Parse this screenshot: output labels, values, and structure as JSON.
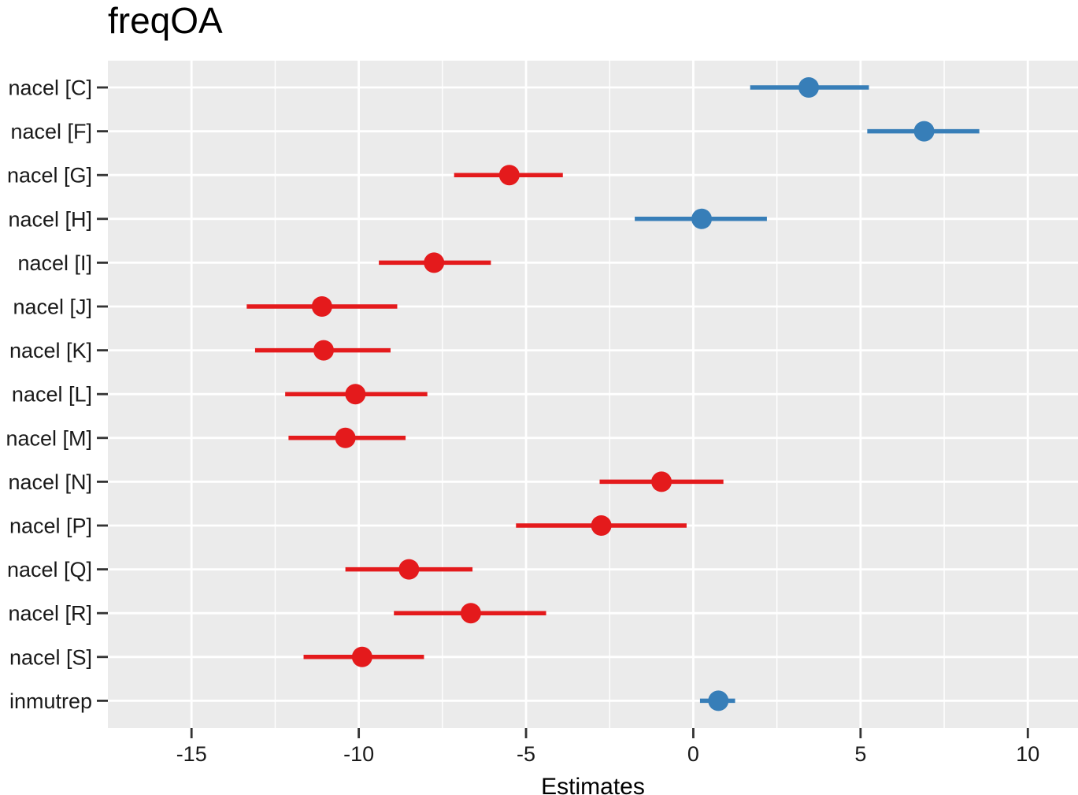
{
  "chart_data": {
    "type": "scatter",
    "title": "freqOA",
    "xlabel": "Estimates",
    "ylabel": "",
    "xlim": [
      -17.5,
      11.5
    ],
    "xticks": [
      -15,
      -10,
      -5,
      0,
      5,
      10
    ],
    "xtick_labels": [
      "-15",
      "-10",
      "-5",
      "0",
      "5",
      "10"
    ],
    "grid": true,
    "legend": "none",
    "colors": {
      "positive": "#377eb8",
      "negative": "#e41a1c",
      "panel": "#ebebeb",
      "grid": "#ffffff"
    },
    "terms": [
      {
        "label": "nacel [C]",
        "estimate": 3.45,
        "low": 1.7,
        "high": 5.25
      },
      {
        "label": "nacel [F]",
        "estimate": 6.9,
        "low": 5.2,
        "high": 8.55
      },
      {
        "label": "nacel [G]",
        "estimate": -5.5,
        "low": -7.15,
        "high": -3.9
      },
      {
        "label": "nacel [H]",
        "estimate": 0.25,
        "low": -1.75,
        "high": 2.2
      },
      {
        "label": "nacel [I]",
        "estimate": -7.75,
        "low": -9.4,
        "high": -6.05
      },
      {
        "label": "nacel [J]",
        "estimate": -11.1,
        "low": -13.35,
        "high": -8.85
      },
      {
        "label": "nacel [K]",
        "estimate": -11.05,
        "low": -13.1,
        "high": -9.05
      },
      {
        "label": "nacel [L]",
        "estimate": -10.1,
        "low": -12.2,
        "high": -7.95
      },
      {
        "label": "nacel [M]",
        "estimate": -10.4,
        "low": -12.1,
        "high": -8.6
      },
      {
        "label": "nacel [N]",
        "estimate": -0.95,
        "low": -2.8,
        "high": 0.9
      },
      {
        "label": "nacel [P]",
        "estimate": -2.75,
        "low": -5.3,
        "high": -0.2
      },
      {
        "label": "nacel [Q]",
        "estimate": -8.5,
        "low": -10.4,
        "high": -6.6
      },
      {
        "label": "nacel [R]",
        "estimate": -6.65,
        "low": -8.95,
        "high": -4.4
      },
      {
        "label": "nacel [S]",
        "estimate": -9.9,
        "low": -11.65,
        "high": -8.05
      },
      {
        "label": "inmutrep",
        "estimate": 0.75,
        "low": 0.2,
        "high": 1.25
      }
    ]
  }
}
